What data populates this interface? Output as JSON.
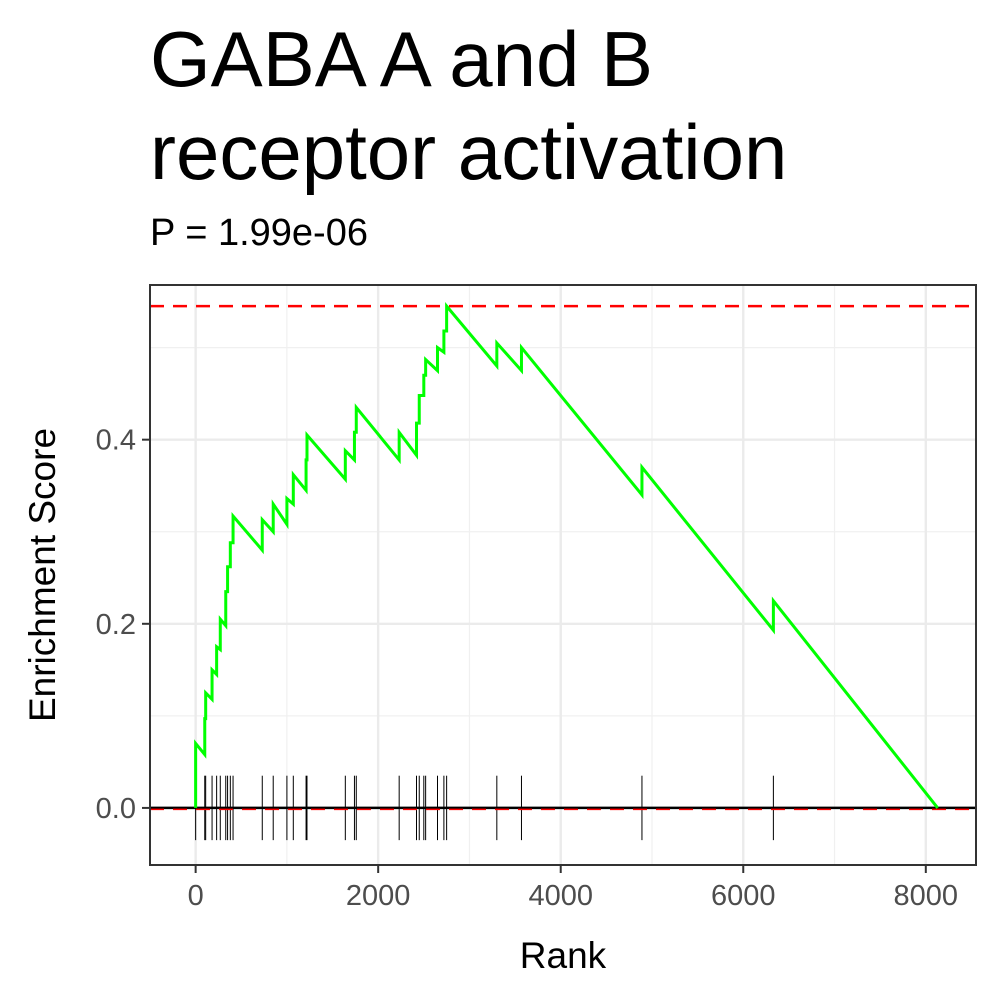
{
  "title_line1": "GABA A and B",
  "title_line2": "receptor activation",
  "subtitle": "P = 1.99e-06",
  "chart_data": {
    "type": "line",
    "xlabel": "Rank",
    "ylabel": "Enrichment Score",
    "xlim": [
      -500,
      8550
    ],
    "ylim": [
      -0.062,
      0.568
    ],
    "x_ticks": [
      0,
      2000,
      4000,
      6000,
      8000
    ],
    "x_tick_labels": [
      "0",
      "2000",
      "4000",
      "6000",
      "8000"
    ],
    "y_ticks": [
      0.0,
      0.2,
      0.4
    ],
    "y_tick_labels": [
      "0.0",
      "0.2",
      "0.4"
    ],
    "grid": true,
    "max_es": 0.545,
    "curve_color": "#00ff00",
    "max_line_color": "#ff0000",
    "series": [
      {
        "points": [
          [
            0,
            0.0
          ],
          [
            0,
            0.07
          ],
          [
            100,
            0.058
          ],
          [
            100,
            0.097
          ],
          [
            110,
            0.097
          ],
          [
            110,
            0.125
          ],
          [
            180,
            0.118
          ],
          [
            180,
            0.15
          ],
          [
            230,
            0.145
          ],
          [
            230,
            0.175
          ],
          [
            270,
            0.172
          ],
          [
            270,
            0.205
          ],
          [
            330,
            0.198
          ],
          [
            330,
            0.235
          ],
          [
            350,
            0.235
          ],
          [
            350,
            0.262
          ],
          [
            380,
            0.262
          ],
          [
            380,
            0.288
          ],
          [
            410,
            0.288
          ],
          [
            410,
            0.317
          ],
          [
            730,
            0.28
          ],
          [
            730,
            0.313
          ],
          [
            850,
            0.3
          ],
          [
            850,
            0.33
          ],
          [
            1000,
            0.308
          ],
          [
            1000,
            0.336
          ],
          [
            1070,
            0.33
          ],
          [
            1070,
            0.362
          ],
          [
            1210,
            0.345
          ],
          [
            1210,
            0.378
          ],
          [
            1220,
            0.378
          ],
          [
            1220,
            0.405
          ],
          [
            1640,
            0.357
          ],
          [
            1640,
            0.388
          ],
          [
            1740,
            0.378
          ],
          [
            1740,
            0.408
          ],
          [
            1760,
            0.408
          ],
          [
            1760,
            0.435
          ],
          [
            2230,
            0.378
          ],
          [
            2230,
            0.408
          ],
          [
            2420,
            0.383
          ],
          [
            2420,
            0.418
          ],
          [
            2450,
            0.418
          ],
          [
            2450,
            0.448
          ],
          [
            2500,
            0.448
          ],
          [
            2500,
            0.47
          ],
          [
            2520,
            0.47
          ],
          [
            2520,
            0.487
          ],
          [
            2650,
            0.475
          ],
          [
            2650,
            0.5
          ],
          [
            2720,
            0.495
          ],
          [
            2720,
            0.518
          ],
          [
            2750,
            0.518
          ],
          [
            2750,
            0.545
          ],
          [
            3300,
            0.48
          ],
          [
            3300,
            0.505
          ],
          [
            3570,
            0.475
          ],
          [
            3570,
            0.5
          ],
          [
            4890,
            0.34
          ],
          [
            4890,
            0.37
          ],
          [
            6330,
            0.193
          ],
          [
            6330,
            0.225
          ],
          [
            8130,
            0.0
          ]
        ]
      }
    ],
    "hit_ranks": [
      0,
      100,
      110,
      180,
      230,
      270,
      330,
      350,
      380,
      410,
      730,
      850,
      1000,
      1070,
      1210,
      1220,
      1640,
      1740,
      1760,
      2230,
      2420,
      2450,
      2500,
      2520,
      2650,
      2720,
      2750,
      3300,
      3570,
      4890,
      6330
    ]
  }
}
